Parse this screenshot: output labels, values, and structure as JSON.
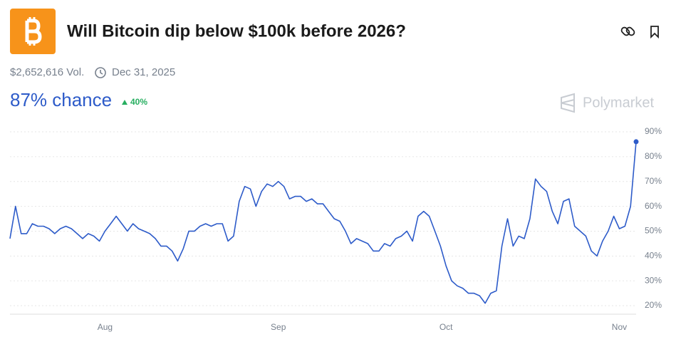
{
  "title": "Will Bitcoin dip below $100k before 2026?",
  "volume": "$2,652,616 Vol.",
  "end_date": "Dec 31, 2025",
  "chance": "87% chance",
  "change": "40%",
  "brand": "Polymarket",
  "chart_data": {
    "type": "line",
    "color": "#2d5bc9",
    "categories": [
      null,
      null,
      null,
      null,
      null,
      null,
      null,
      null,
      null,
      null,
      null,
      null,
      null,
      null,
      null,
      null,
      null,
      "Aug",
      null,
      null,
      null,
      null,
      null,
      null,
      null,
      null,
      null,
      null,
      null,
      null,
      null,
      null,
      null,
      null,
      null,
      null,
      null,
      null,
      null,
      null,
      null,
      null,
      null,
      null,
      null,
      null,
      null,
      null,
      "Sep",
      null,
      null,
      null,
      null,
      null,
      null,
      null,
      null,
      null,
      null,
      null,
      null,
      null,
      null,
      null,
      null,
      null,
      null,
      null,
      null,
      null,
      null,
      null,
      null,
      null,
      null,
      null,
      null,
      null,
      "Oct",
      null,
      null,
      null,
      null,
      null,
      null,
      null,
      null,
      null,
      null,
      null,
      null,
      null,
      null,
      null,
      null,
      null,
      null,
      null,
      null,
      null,
      null,
      null,
      null,
      null,
      null,
      null,
      null,
      null,
      null,
      "Nov",
      null,
      null,
      null
    ],
    "values": [
      47,
      60,
      49,
      49,
      53,
      52,
      52,
      51,
      49,
      51,
      52,
      51,
      49,
      47,
      49,
      48,
      46,
      50,
      53,
      56,
      53,
      50,
      53,
      51,
      50,
      49,
      47,
      44,
      44,
      42,
      38,
      43,
      50,
      50,
      52,
      53,
      52,
      53,
      53,
      46,
      48,
      62,
      68,
      67,
      60,
      66,
      69,
      68,
      70,
      68,
      63,
      64,
      64,
      62,
      63,
      61,
      61,
      58,
      55,
      54,
      50,
      45,
      47,
      46,
      45,
      42,
      42,
      45,
      44,
      47,
      48,
      50,
      46,
      56,
      58,
      56,
      50,
      44,
      36,
      30,
      28,
      27,
      25,
      25,
      24,
      21,
      25,
      26,
      44,
      55,
      44,
      48,
      47,
      55,
      71,
      68,
      66,
      58,
      53,
      62,
      63,
      52,
      50,
      48,
      42,
      40,
      46,
      50,
      56,
      51,
      52,
      60,
      86
    ],
    "ylim": [
      16,
      92
    ],
    "yticks": [
      {
        "value": 20,
        "label": "20%"
      },
      {
        "value": 30,
        "label": "30%"
      },
      {
        "value": 40,
        "label": "40%"
      },
      {
        "value": 50,
        "label": "50%"
      },
      {
        "value": 60,
        "label": "60%"
      },
      {
        "value": 70,
        "label": "70%"
      },
      {
        "value": 80,
        "label": "80%"
      },
      {
        "value": 90,
        "label": "90%"
      }
    ],
    "grid": true
  }
}
